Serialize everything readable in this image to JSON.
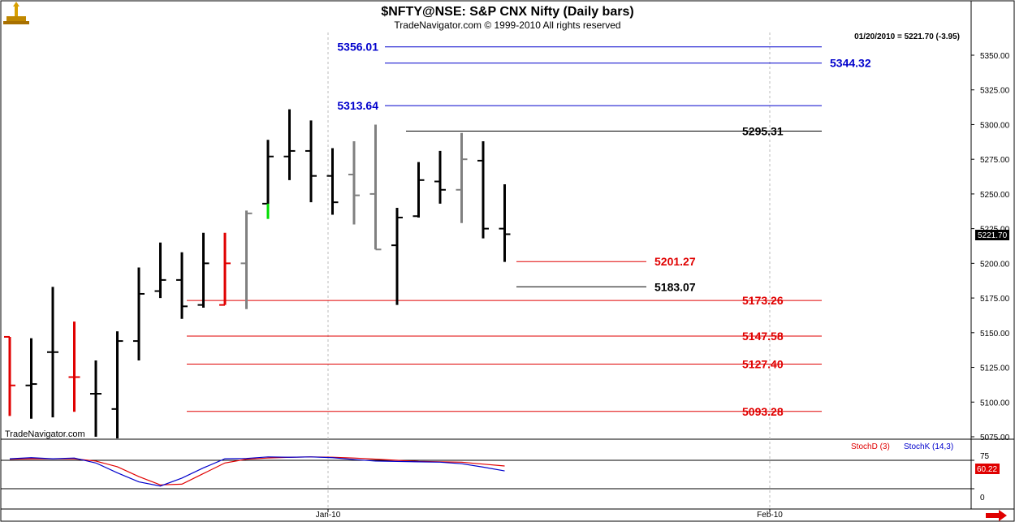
{
  "header": {
    "title": "$NFTY@NSE:  S&P CNX Nifty  (Daily bars)",
    "subtitle": "TradeNavigator.com © 1999-2010 All rights reserved",
    "quote": "01/20/2010 = 5221.70 (-3.95)"
  },
  "watermark": "TradeNavigator.com",
  "colors": {
    "up": "#000000",
    "down": "#e00000",
    "neutral": "#808080",
    "signal": "#00dd00",
    "blue_level": "#0000cc",
    "red_level": "#e00000",
    "black_level": "#000000",
    "stochd": "#e00000",
    "stochk": "#0000cc"
  },
  "chart_data": [
    {
      "type": "ohlc",
      "title": "$NFTY@NSE:  S&P CNX Nifty  (Daily bars)",
      "ylim": [
        5072,
        5382
      ],
      "y_ticks": [
        "5075.00",
        "5100.00",
        "5125.00",
        "5150.00",
        "5175.00",
        "5200.00",
        "5225.00",
        "5250.00",
        "5275.00",
        "5300.00",
        "5325.00",
        "5350.00"
      ],
      "x_ticks": [
        "Jan-10",
        "Feb-10"
      ],
      "last_price_label": "5221.70",
      "bars": [
        {
          "o": 5147,
          "h": 5147,
          "l": 5090,
          "c": 5112,
          "color": "down"
        },
        {
          "o": 5112,
          "h": 5146,
          "l": 5088,
          "c": 5113,
          "color": "up"
        },
        {
          "o": 5136,
          "h": 5183,
          "l": 5089,
          "c": 5136,
          "color": "up"
        },
        {
          "o": 5118,
          "h": 5158,
          "l": 5093,
          "c": 5118,
          "color": "down"
        },
        {
          "o": 5106,
          "h": 5130,
          "l": 5075,
          "c": 5106,
          "color": "up"
        },
        {
          "o": 5095,
          "h": 5151,
          "l": 5072,
          "c": 5144,
          "color": "up"
        },
        {
          "o": 5144,
          "h": 5197,
          "l": 5130,
          "c": 5178,
          "color": "up"
        },
        {
          "o": 5180,
          "h": 5215,
          "l": 5175,
          "c": 5188,
          "color": "up"
        },
        {
          "o": 5188,
          "h": 5208,
          "l": 5160,
          "c": 5169,
          "color": "up"
        },
        {
          "o": 5170,
          "h": 5222,
          "l": 5168,
          "c": 5200,
          "color": "up"
        },
        {
          "o": 5170,
          "h": 5222,
          "l": 5170,
          "c": 5200,
          "color": "down"
        },
        {
          "o": 5200,
          "h": 5238,
          "l": 5167,
          "c": 5236,
          "color": "neutral"
        },
        {
          "o": 5243,
          "h": 5289,
          "l": 5233,
          "c": 5277,
          "color": "up"
        },
        {
          "o": 5277,
          "h": 5311,
          "l": 5260,
          "c": 5281,
          "color": "up"
        },
        {
          "o": 5281,
          "h": 5303,
          "l": 5244,
          "c": 5263,
          "color": "up"
        },
        {
          "o": 5263,
          "h": 5283,
          "l": 5235,
          "c": 5244,
          "color": "up"
        },
        {
          "o": 5264,
          "h": 5288,
          "l": 5228,
          "c": 5249,
          "color": "neutral"
        },
        {
          "o": 5250,
          "h": 5300,
          "l": 5210,
          "c": 5210,
          "color": "neutral"
        },
        {
          "o": 5213,
          "h": 5240,
          "l": 5170,
          "c": 5233,
          "color": "up"
        },
        {
          "o": 5234,
          "h": 5273,
          "l": 5233,
          "c": 5260,
          "color": "up"
        },
        {
          "o": 5259,
          "h": 5281,
          "l": 5243,
          "c": 5253,
          "color": "up"
        },
        {
          "o": 5253,
          "h": 5294,
          "l": 5229,
          "c": 5275,
          "color": "neutral"
        },
        {
          "o": 5274,
          "h": 5288,
          "l": 5218,
          "c": 5225,
          "color": "up"
        },
        {
          "o": 5225,
          "h": 5257,
          "l": 5201,
          "c": 5221,
          "color": "up"
        }
      ],
      "signal_bar": {
        "index": 12,
        "low": 5232,
        "high": 5243
      },
      "levels": [
        {
          "value": 5356.01,
          "label": "5356.01",
          "color": "blue_level",
          "side": "left"
        },
        {
          "value": 5344.32,
          "label": "5344.32",
          "color": "blue_level",
          "side": "right"
        },
        {
          "value": 5313.64,
          "label": "5313.64",
          "color": "blue_level",
          "side": "left"
        },
        {
          "value": 5295.31,
          "label": "5295.31",
          "color": "black_level",
          "side": "right"
        },
        {
          "value": 5201.27,
          "label": "5201.27",
          "color": "red_level",
          "side": "right"
        },
        {
          "value": 5183.07,
          "label": "5183.07",
          "color": "black_level",
          "side": "right"
        },
        {
          "value": 5173.26,
          "label": "5173.26",
          "color": "red_level",
          "side": "right"
        },
        {
          "value": 5147.58,
          "label": "5147.58",
          "color": "red_level",
          "side": "right"
        },
        {
          "value": 5127.4,
          "label": "5127.40",
          "color": "red_level",
          "side": "right"
        },
        {
          "value": 5093.28,
          "label": "5093.28",
          "color": "red_level",
          "side": "right"
        }
      ]
    },
    {
      "type": "line",
      "legend": [
        "StochD (3)",
        "StochK (14,3)"
      ],
      "ylim": [
        -10,
        100
      ],
      "y_ticks": [
        "75",
        "0"
      ],
      "last_value_label": "60.22",
      "series": [
        {
          "name": "StochD (3)",
          "color": "stochd",
          "values": [
            78,
            79,
            79,
            79,
            73,
            58,
            32,
            10,
            12,
            40,
            68,
            78,
            81,
            83,
            84,
            83,
            81,
            78,
            75,
            72,
            71,
            70,
            65,
            60
          ]
        },
        {
          "name": "StochK (14,3)",
          "color": "stochk",
          "values": [
            79,
            82,
            79,
            81,
            68,
            42,
            18,
            7,
            28,
            55,
            79,
            80,
            84,
            83,
            84,
            82,
            77,
            73,
            72,
            71,
            70,
            66,
            57,
            47
          ]
        }
      ]
    }
  ]
}
